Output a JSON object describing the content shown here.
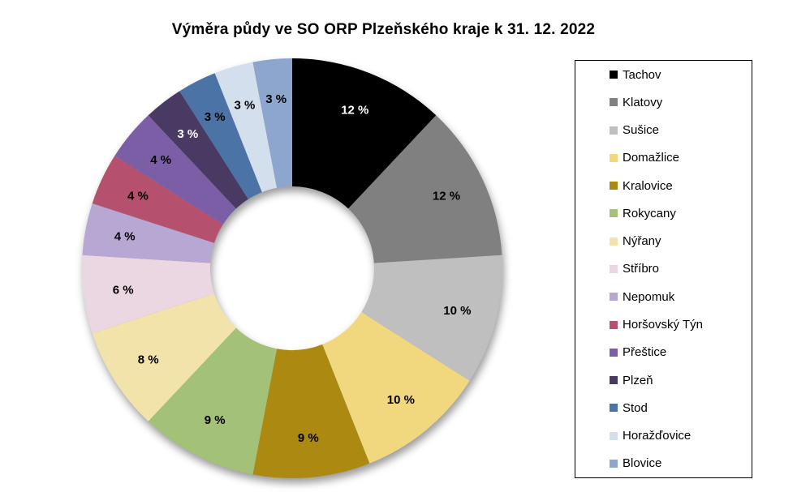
{
  "title": "Výměra půdy ve SO ORP Plzeňského kraje k 31. 12. 2022",
  "chart_data": {
    "type": "pie",
    "subtype": "donut",
    "title": "Výměra půdy ve SO ORP Plzeňského kraje k 31. 12. 2022",
    "start_angle_deg": 0,
    "direction": "clockwise",
    "inner_radius_ratio": 0.39,
    "legend_position": "right",
    "unit": "%",
    "series": [
      {
        "name": "Tachov",
        "value": 12,
        "label": "12 %",
        "color": "#000000",
        "label_color": "#FFFFFF"
      },
      {
        "name": "Klatovy",
        "value": 12,
        "label": "12 %",
        "color": "#808080",
        "label_color": "#000000"
      },
      {
        "name": "Sušice",
        "value": 10,
        "label": "10 %",
        "color": "#BFBFBF",
        "label_color": "#000000"
      },
      {
        "name": "Domažlice",
        "value": 10,
        "label": "10 %",
        "color": "#F1D87F",
        "label_color": "#000000"
      },
      {
        "name": "Kralovice",
        "value": 9,
        "label": "9 %",
        "color": "#AC8A12",
        "label_color": "#000000"
      },
      {
        "name": "Rokycany",
        "value": 9,
        "label": "9 %",
        "color": "#A4C178",
        "label_color": "#000000"
      },
      {
        "name": "Nýřany",
        "value": 8,
        "label": "8 %",
        "color": "#F1E3AA",
        "label_color": "#000000"
      },
      {
        "name": "Stříbro",
        "value": 6,
        "label": "6 %",
        "color": "#EBD7E2",
        "label_color": "#000000"
      },
      {
        "name": "Nepomuk",
        "value": 4,
        "label": "4 %",
        "color": "#B7A8D3",
        "label_color": "#000000"
      },
      {
        "name": "Horšovský Týn",
        "value": 4,
        "label": "4 %",
        "color": "#B5516F",
        "label_color": "#000000"
      },
      {
        "name": "Přeštice",
        "value": 4,
        "label": "4 %",
        "color": "#7B5EA6",
        "label_color": "#000000"
      },
      {
        "name": "Plzeň",
        "value": 3,
        "label": "3 %",
        "color": "#483A63",
        "label_color": "#FFFFFF"
      },
      {
        "name": "Stod",
        "value": 3,
        "label": "3 %",
        "color": "#4B73A6",
        "label_color": "#000000"
      },
      {
        "name": "Horažďovice",
        "value": 3,
        "label": "3 %",
        "color": "#D4DFEE",
        "label_color": "#000000"
      },
      {
        "name": "Blovice",
        "value": 3,
        "label": "3 %",
        "color": "#8CA6CE",
        "label_color": "#000000"
      }
    ]
  }
}
